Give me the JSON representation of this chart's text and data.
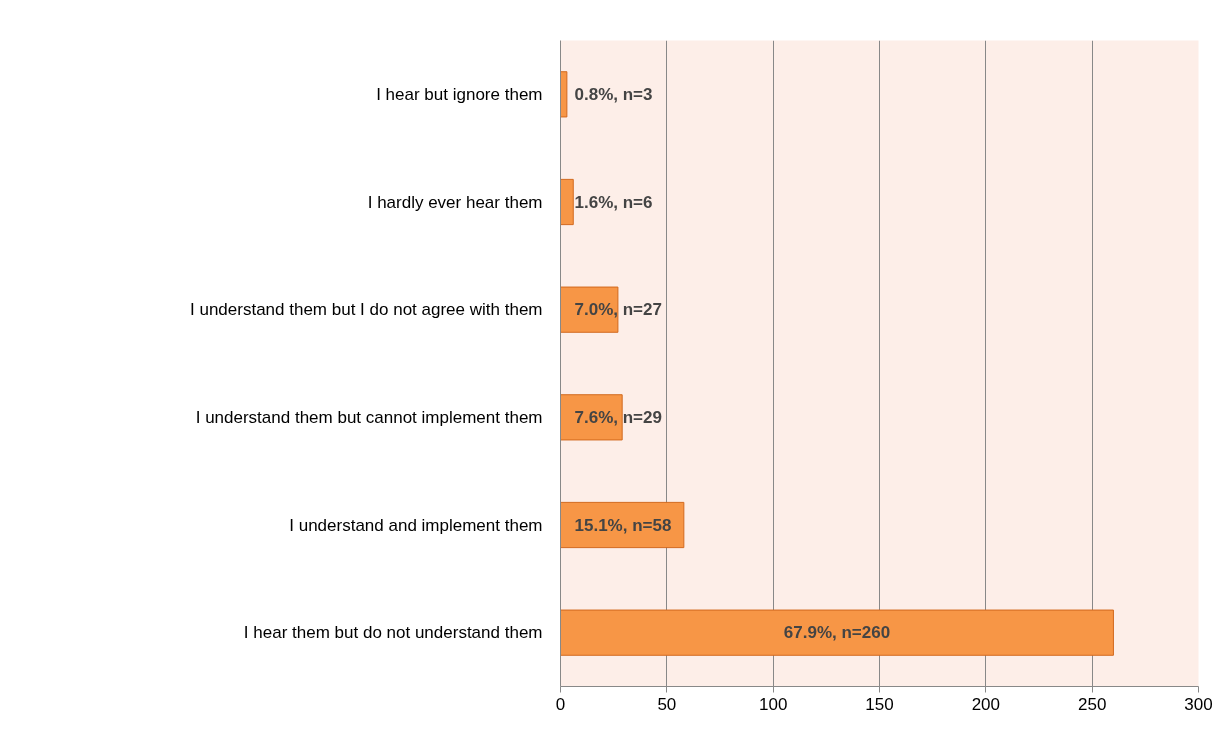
{
  "chart_data": {
    "type": "bar",
    "orientation": "horizontal",
    "categories": [
      "I hear but ignore them",
      "I hardly ever hear them",
      "I understand them but I do not agree with them",
      "I understand them but cannot implement them",
      "I understand and implement them",
      "I hear them but do not understand them"
    ],
    "values": [
      3,
      6,
      27,
      29,
      58,
      260
    ],
    "value_labels": [
      "0.8%, n=3",
      "1.6%, n=6",
      "7.0%, n=27",
      "7.6%, n=29",
      "15.1%, n=58",
      "67.9%, n=260"
    ],
    "color": "#f79646",
    "xlim": [
      0,
      300
    ],
    "xticks": [
      0,
      50,
      100,
      150,
      200,
      250,
      300
    ],
    "grid": "x"
  }
}
